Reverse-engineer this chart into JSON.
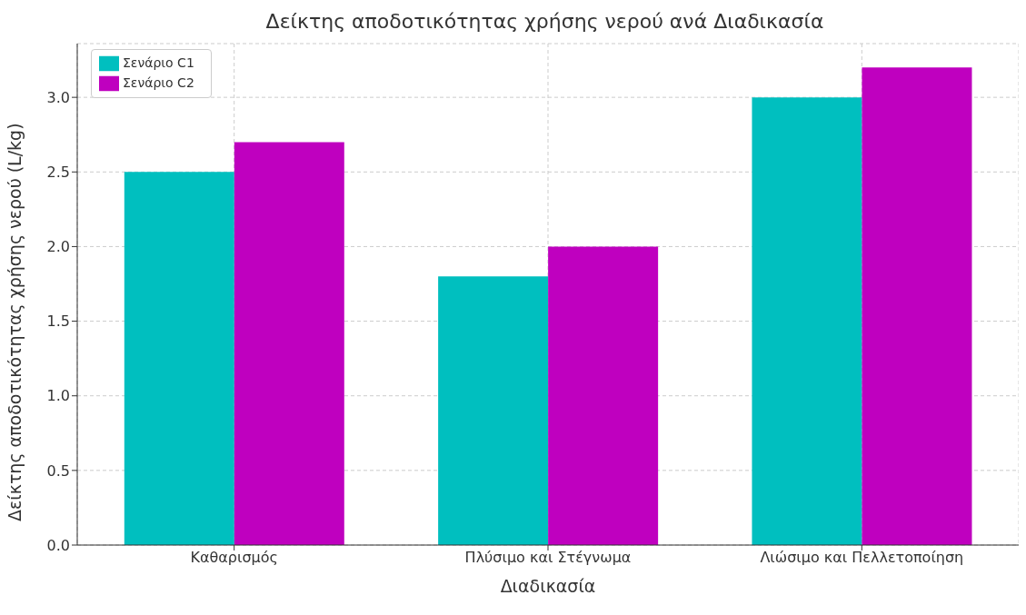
{
  "chart_data": {
    "type": "bar",
    "title": "Δείκτης αποδοτικότητας χρήσης νερού ανά Διαδικασία",
    "xlabel": "Διαδικασία",
    "ylabel": "Δείκτης αποδοτικότητας χρήσης νερού (L/kg)",
    "categories": [
      "Καθαρισμός",
      "Πλύσιμο και Στέγνωμα",
      "Λιώσιμο και Πελλετοποίηση"
    ],
    "series": [
      {
        "name": "Σενάριο C1",
        "color": "#00bfbf",
        "values": [
          2.5,
          1.8,
          3.0
        ]
      },
      {
        "name": "Σενάριο C2",
        "color": "#bf00bf",
        "values": [
          2.7,
          2.0,
          3.2
        ]
      }
    ],
    "ylim": [
      0,
      3.36
    ],
    "yticks": [
      {
        "value": 0,
        "label": "0.0"
      },
      0.5,
      {
        "value": 1,
        "label": "1.0"
      },
      1.5,
      {
        "value": 2,
        "label": "2.0"
      },
      2.5,
      {
        "value": 3,
        "label": "3.0"
      }
    ],
    "grid": true,
    "legend": "top left"
  }
}
